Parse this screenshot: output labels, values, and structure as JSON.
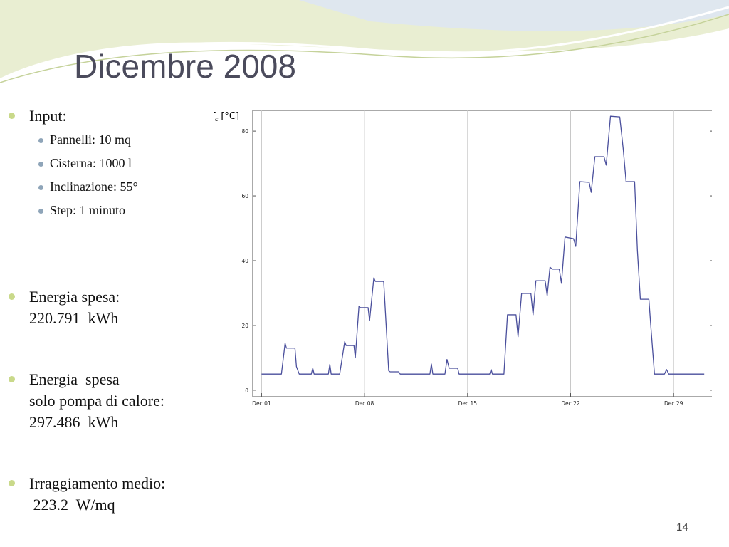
{
  "title": "Dicembre 2008",
  "bullets": [
    {
      "lines": [
        "Input:"
      ],
      "sub": [
        "Pannelli: 10 mq",
        "Cisterna: 1000 l",
        "Inclinazione: 55°",
        "Step: 1 minuto"
      ]
    },
    {
      "lines": [
        "Energia spesa:",
        "220.791  kWh"
      ]
    },
    {
      "lines": [
        "Energia  spesa",
        "solo pompa di calore:",
        "297.486  kWh"
      ]
    },
    {
      "lines": [
        "Irraggiamento medio:",
        " 223.2  W/mq"
      ]
    }
  ],
  "page_number": "14",
  "chart_data": {
    "type": "line",
    "ylabel_symbol": "T",
    "ylabel_subscript": "c",
    "ylabel_unit": "[°C]",
    "xlim": [
      0.4,
      31.7
    ],
    "ylim": [
      -2,
      86.4
    ],
    "xticks": [
      {
        "value": 1,
        "label": "Dec 01"
      },
      {
        "value": 8,
        "label": "Dec 08"
      },
      {
        "value": 15,
        "label": "Dec 15"
      },
      {
        "value": 22,
        "label": "Dec 22"
      },
      {
        "value": 29,
        "label": "Dec 29"
      }
    ],
    "yticks": [
      0,
      20,
      40,
      60,
      80
    ],
    "grid": true,
    "series": [
      {
        "color": "#4a4f9c",
        "x": [
          1,
          2.35,
          2.6,
          2.69,
          3.27,
          3.37,
          3.56,
          4.38,
          4.48,
          4.57,
          5.54,
          5.64,
          5.73,
          6.31,
          6.65,
          6.75,
          7.28,
          7.37,
          7.62,
          7.71,
          8.24,
          8.34,
          8.63,
          8.73,
          9.3,
          9.64,
          9.74,
          10.32,
          10.42,
          12.44,
          12.54,
          12.64,
          13.46,
          13.6,
          13.75,
          14.33,
          14.42,
          16.5,
          16.6,
          16.69,
          17.47,
          17.71,
          18.29,
          18.43,
          18.67,
          19.3,
          19.45,
          19.64,
          20.27,
          20.41,
          20.6,
          20.75,
          21.23,
          21.38,
          21.62,
          22.2,
          22.35,
          22.63,
          23.26,
          23.4,
          23.65,
          24.27,
          24.42,
          24.71,
          25.34,
          25.58,
          25.77,
          26.35,
          26.54,
          26.74,
          27.32,
          27.46,
          27.7,
          28.38,
          28.52,
          28.67,
          31.08
        ],
        "values": [
          5,
          5,
          14.5,
          13,
          13,
          7.3,
          5,
          5,
          6.8,
          5,
          5,
          8,
          5,
          5,
          15,
          13.8,
          13.8,
          10,
          26,
          25.5,
          25.5,
          21.5,
          34.7,
          33.6,
          33.6,
          6,
          5.7,
          5.7,
          5,
          5,
          8.1,
          5,
          5,
          9.5,
          6.8,
          6.8,
          5,
          5,
          6.4,
          5,
          5,
          23.3,
          23.3,
          16.5,
          29.9,
          29.9,
          23.3,
          33.8,
          33.8,
          29.2,
          38,
          37.4,
          37.4,
          33,
          47.3,
          46.8,
          44.4,
          64.4,
          64.2,
          61.1,
          72.1,
          72.1,
          69.5,
          84.6,
          84.4,
          74.3,
          64.4,
          64.4,
          43.1,
          28.1,
          28.1,
          19.3,
          5,
          5,
          6.4,
          5,
          5
        ]
      }
    ]
  }
}
